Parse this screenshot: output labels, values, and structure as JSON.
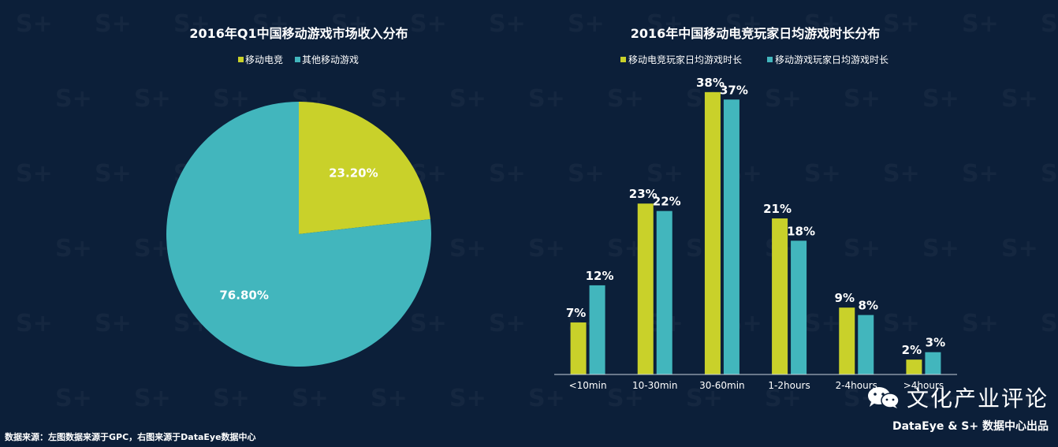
{
  "colors": {
    "background": "#0c1f39",
    "series_lime": "#c9d12a",
    "series_teal": "#42b6bd",
    "axis": "#c8d2dc"
  },
  "chart_data": [
    {
      "type": "pie",
      "title": "2016年Q1中国移动游戏市场收入分布",
      "legend": [
        "移动电竞",
        "其他移动游戏"
      ],
      "legend_position": "top",
      "slices": [
        {
          "name": "移动电竞",
          "value": 23.2,
          "label": "23.20%",
          "color": "#c9d12a"
        },
        {
          "name": "其他移动游戏",
          "value": 76.8,
          "label": "76.80%",
          "color": "#42b6bd"
        }
      ]
    },
    {
      "type": "bar",
      "title": "2016年中国移动电竞玩家日均游戏时长分布",
      "legend_position": "top",
      "categories": [
        "<10min",
        "10-30min",
        "30-60min",
        "1-2hours",
        "2-4hours",
        ">4hours"
      ],
      "series": [
        {
          "name": "移动电竞玩家日均游戏时长",
          "values": [
            7,
            23,
            38,
            21,
            9,
            2
          ],
          "color": "#c9d12a"
        },
        {
          "name": "移动游戏玩家日均游戏时长",
          "values": [
            12,
            22,
            37,
            18,
            8,
            3
          ],
          "color": "#42b6bd"
        }
      ],
      "value_suffix": "%",
      "ylim": [
        0,
        40
      ],
      "grid": false
    }
  ],
  "footer": {
    "source": "数据来源：左图数据来源于GPC，右图来源于DataEye数据中心"
  },
  "brand": {
    "name": "文化产业评论",
    "credit": "DataEye & S+ 数据中心出品",
    "icon": "wechat-icon"
  }
}
